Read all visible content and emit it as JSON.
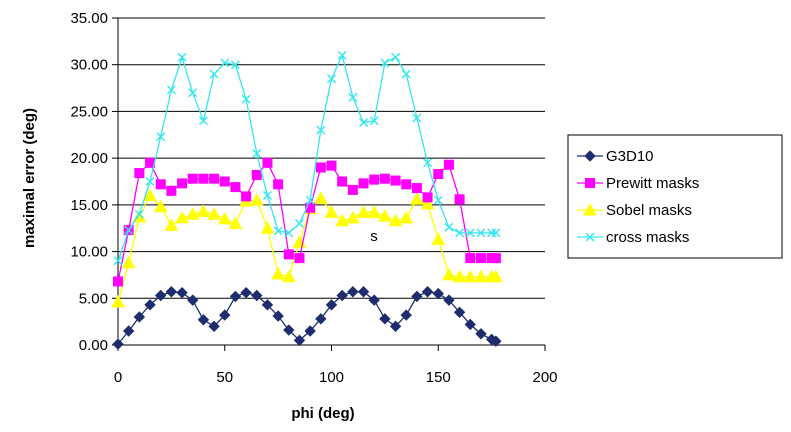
{
  "chart_data": {
    "type": "line",
    "title": "",
    "xlabel": "phi (deg)",
    "ylabel": "maximal error (deg)",
    "xlim": [
      0,
      200
    ],
    "ylim": [
      0,
      35
    ],
    "x_ticks": [
      "0",
      "50",
      "100",
      "150",
      "200"
    ],
    "y_ticks": [
      "0.00",
      "5.00",
      "10.00",
      "15.00",
      "20.00",
      "25.00",
      "30.00",
      "35.00"
    ],
    "grid": "horizontal",
    "legend_position": "right",
    "annotation": "s",
    "x": [
      0,
      5,
      10,
      15,
      20,
      25,
      30,
      35,
      40,
      45,
      50,
      55,
      60,
      65,
      70,
      75,
      80,
      85,
      90,
      95,
      100,
      105,
      110,
      115,
      120,
      125,
      130,
      135,
      140,
      145,
      150,
      155,
      160,
      165,
      170,
      175,
      177
    ],
    "series": [
      {
        "name": "G3D10",
        "color": "#1f2d6e",
        "marker": "diamond",
        "values": [
          0.1,
          1.5,
          3.0,
          4.3,
          5.3,
          5.7,
          5.6,
          4.8,
          2.7,
          2.0,
          3.2,
          5.2,
          5.6,
          5.3,
          4.3,
          3.1,
          1.6,
          0.5,
          1.5,
          2.8,
          4.3,
          5.3,
          5.7,
          5.7,
          4.8,
          2.8,
          2.0,
          3.2,
          5.2,
          5.7,
          5.5,
          4.8,
          3.5,
          2.2,
          1.2,
          0.6,
          0.4
        ]
      },
      {
        "name": "Prewitt masks",
        "color": "#ff00ff",
        "marker": "square",
        "values": [
          6.8,
          12.3,
          18.4,
          19.5,
          17.2,
          16.5,
          17.3,
          17.8,
          17.8,
          17.8,
          17.5,
          16.9,
          15.9,
          18.2,
          19.5,
          17.2,
          9.7,
          9.3,
          14.7,
          19.0,
          19.2,
          17.5,
          16.6,
          17.3,
          17.7,
          17.8,
          17.6,
          17.2,
          16.8,
          15.8,
          18.3,
          19.3,
          15.6,
          9.3,
          9.3,
          9.3,
          9.3
        ]
      },
      {
        "name": "Sobel masks",
        "color": "#ffff00",
        "marker": "triangle",
        "values": [
          4.6,
          8.8,
          13.7,
          16.0,
          14.8,
          12.8,
          13.6,
          14.0,
          14.3,
          14.0,
          13.5,
          13.0,
          15.4,
          15.5,
          12.5,
          7.6,
          7.3,
          11.0,
          14.6,
          15.7,
          14.2,
          13.3,
          13.6,
          14.2,
          14.2,
          13.8,
          13.3,
          13.6,
          15.6,
          15.1,
          11.3,
          7.5,
          7.3,
          7.3,
          7.3,
          7.3,
          7.3
        ]
      },
      {
        "name": "cross masks",
        "color": "#33e6ee",
        "marker": "x",
        "values": [
          9.0,
          12.3,
          14.0,
          17.5,
          22.3,
          27.3,
          30.8,
          27.0,
          24.0,
          29.0,
          30.2,
          30.0,
          26.3,
          20.5,
          16.0,
          12.2,
          12.0,
          13.0,
          15.5,
          23.0,
          28.5,
          31.0,
          26.5,
          23.8,
          24.0,
          30.2,
          30.8,
          29.0,
          24.3,
          19.5,
          15.5,
          12.6,
          12.0,
          12.0,
          12.0,
          12.0,
          12.0
        ]
      }
    ]
  }
}
